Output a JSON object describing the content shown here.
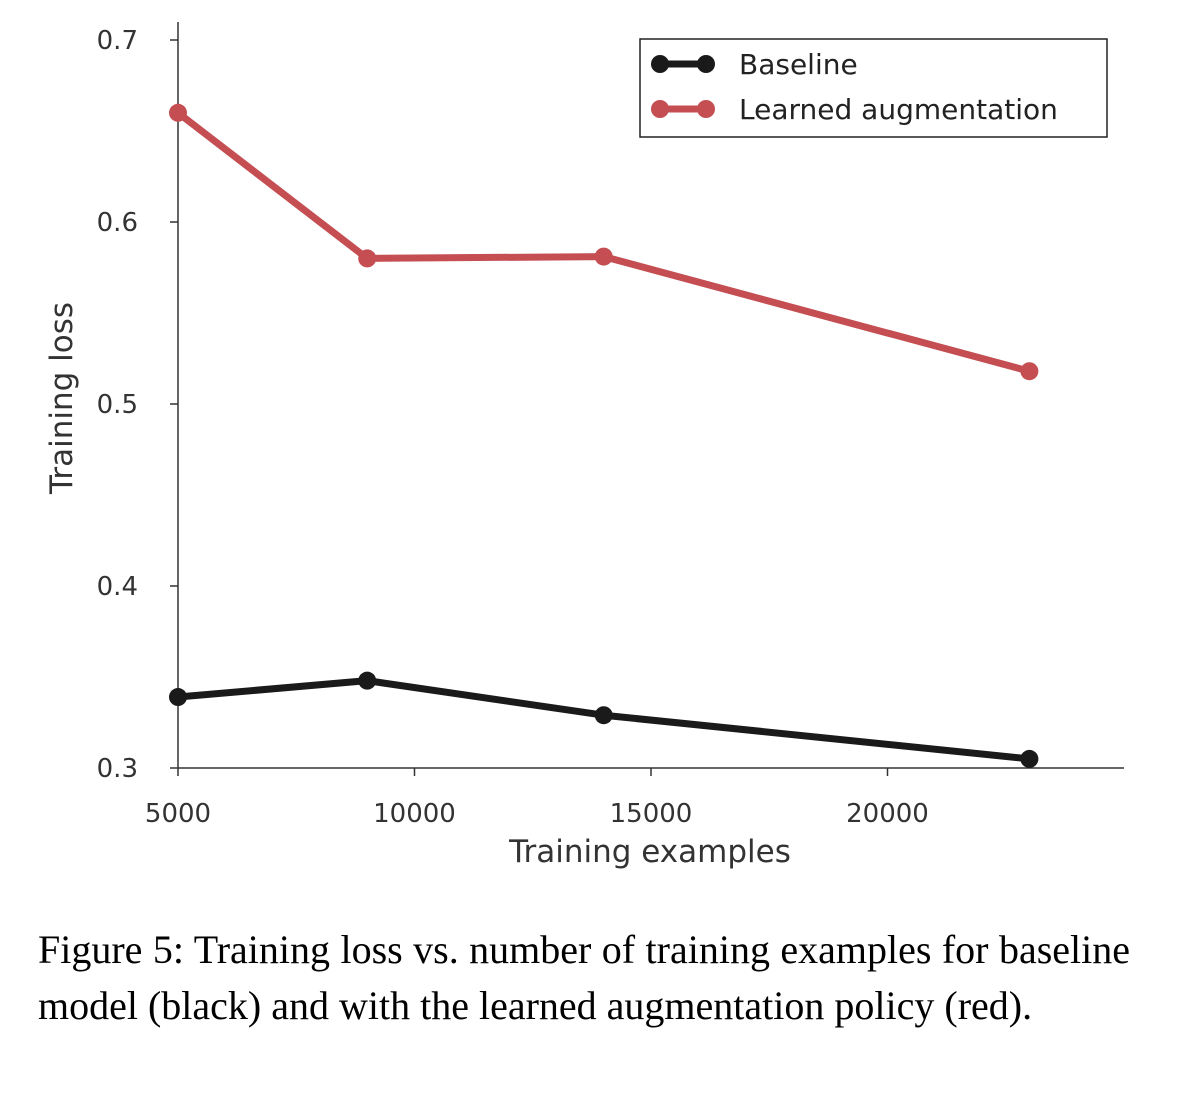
{
  "chart_data": {
    "type": "line",
    "xlabel": "Training examples",
    "ylabel": "Training loss",
    "xlim": [
      5000,
      25000
    ],
    "ylim": [
      0.3,
      0.7
    ],
    "xticks": [
      5000,
      10000,
      15000,
      20000
    ],
    "xtick_labels": [
      "5000",
      "10000",
      "15000",
      "20000"
    ],
    "yticks": [
      0.3,
      0.4,
      0.5,
      0.6,
      0.7
    ],
    "ytick_labels": [
      "0.3",
      "0.4",
      "0.5",
      "0.6",
      "0.7"
    ],
    "grid": false,
    "legend_position": "top-right",
    "x": [
      5000,
      9000,
      14000,
      23000
    ],
    "series": [
      {
        "name": "Baseline",
        "color": "#1a1a1a",
        "values": [
          0.339,
          0.348,
          0.329,
          0.305
        ]
      },
      {
        "name": "Learned augmentation",
        "color": "#c44e52",
        "values": [
          0.66,
          0.58,
          0.581,
          0.518
        ]
      }
    ]
  },
  "caption": "Figure 5: Training loss vs. number of training examples for baseline model (black) and with the learned augmentation policy (red)."
}
